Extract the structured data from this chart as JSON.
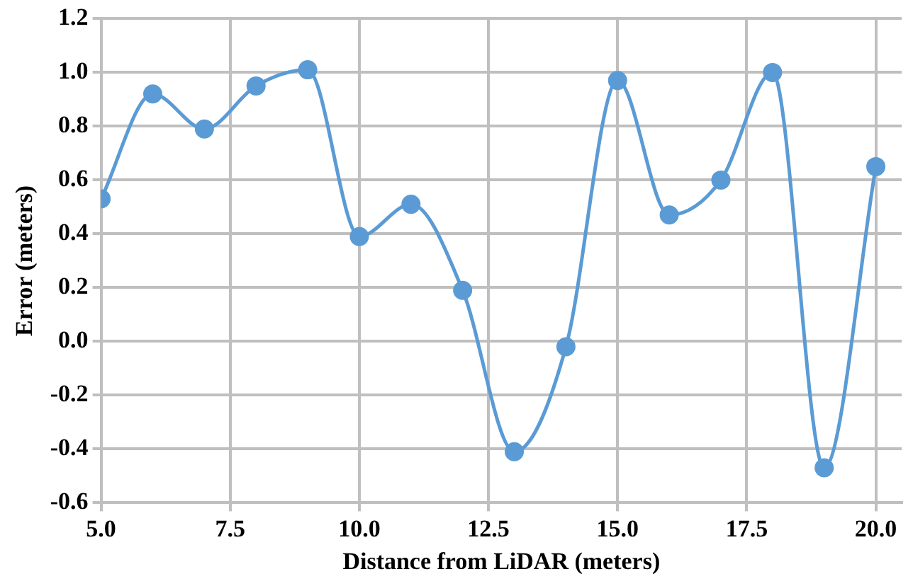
{
  "chart_data": {
    "type": "line",
    "xlabel": "Distance from LiDAR (meters)",
    "ylabel": "Error (meters)",
    "x": [
      5,
      6,
      7,
      8,
      9,
      10,
      11,
      12,
      13,
      14,
      15,
      16,
      17,
      18,
      19,
      20
    ],
    "series": [
      {
        "color": "#5b9bd5",
        "values": [
          0.53,
          0.92,
          0.79,
          0.95,
          1.01,
          0.39,
          0.51,
          0.19,
          -0.41,
          -0.02,
          0.97,
          0.47,
          0.6,
          1.0,
          -0.47,
          0.65
        ]
      }
    ],
    "xlim": [
      5,
      20.5
    ],
    "xticks": [
      {
        "value": 5,
        "label": "5.0"
      },
      {
        "value": 7.5,
        "label": "7.5"
      },
      {
        "value": 10,
        "label": "10.0"
      },
      {
        "value": 12.5,
        "label": "12.5"
      },
      {
        "value": 15,
        "label": "15.0"
      },
      {
        "value": 17.5,
        "label": "17.5"
      },
      {
        "value": 20,
        "label": "20.0"
      }
    ],
    "ylim": [
      -0.6,
      1.2
    ],
    "yticks": [
      {
        "value": -0.6,
        "label": "-0.6"
      },
      {
        "value": -0.4,
        "label": "-0.4"
      },
      {
        "value": -0.2,
        "label": "-0.2"
      },
      {
        "value": 0,
        "label": "0.0"
      },
      {
        "value": 0.2,
        "label": "0.2"
      },
      {
        "value": 0.4,
        "label": "0.4"
      },
      {
        "value": 0.6,
        "label": "0.6"
      },
      {
        "value": 0.8,
        "label": "0.8"
      },
      {
        "value": 1.0,
        "label": "1.0"
      },
      {
        "value": 1.2,
        "label": "1.2"
      }
    ],
    "grid": true,
    "legend": false,
    "marker": "circle",
    "line_style": "solid"
  }
}
